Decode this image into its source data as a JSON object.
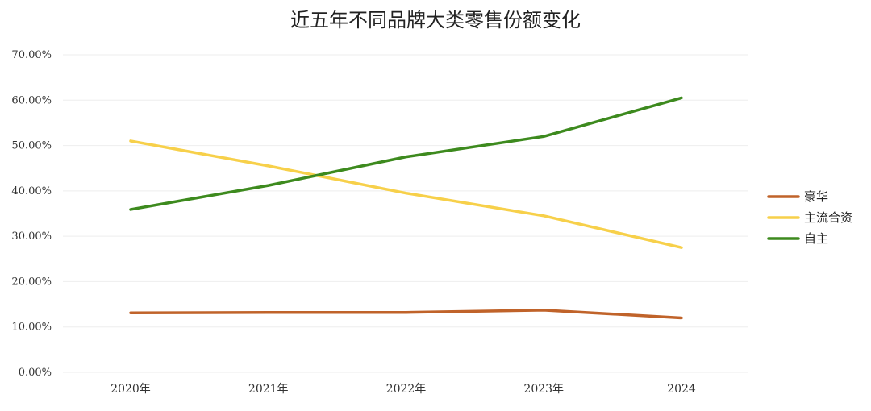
{
  "chart_data": {
    "type": "line",
    "title": "近五年不同品牌大类零售份额变化",
    "categories": [
      "2020年",
      "2021年",
      "2022年",
      "2023年",
      "2024"
    ],
    "ylim": [
      0,
      70
    ],
    "yticks": [
      "0.00%",
      "10.00%",
      "20.00%",
      "30.00%",
      "40.00%",
      "50.00%",
      "60.00%",
      "70.00%"
    ],
    "grid": true,
    "legend_position": "right",
    "series": [
      {
        "name": "豪华",
        "color": "#c0632a",
        "values": [
          13.1,
          13.2,
          13.2,
          13.7,
          12.0
        ]
      },
      {
        "name": "主流合资",
        "color": "#f7d04a",
        "values": [
          51.0,
          45.5,
          39.5,
          34.5,
          27.5
        ]
      },
      {
        "name": "自主",
        "color": "#3d8a1e",
        "values": [
          35.9,
          41.2,
          47.5,
          52.0,
          60.5
        ]
      }
    ]
  }
}
